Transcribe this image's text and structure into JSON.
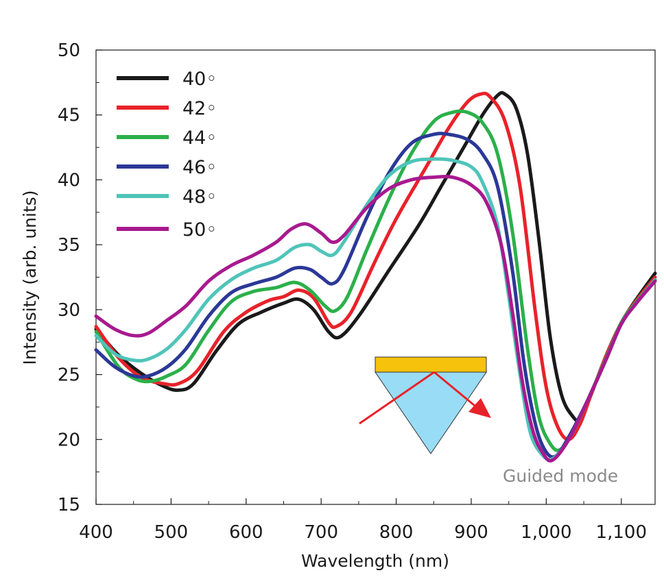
{
  "chart_data": {
    "type": "line",
    "xlabel": "Wavelength (nm)",
    "ylabel": "Intensity (arb. units)",
    "xlim": [
      400,
      1145
    ],
    "ylim": [
      15,
      50
    ],
    "x_ticks": [
      400,
      500,
      600,
      700,
      800,
      900,
      1000,
      1100
    ],
    "x_tick_labels": [
      "400",
      "500",
      "600",
      "700",
      "800",
      "900",
      "1,000",
      "1,100"
    ],
    "y_ticks": [
      15,
      20,
      25,
      30,
      35,
      40,
      45,
      50
    ],
    "y_tick_labels": [
      "15",
      "20",
      "25",
      "30",
      "35",
      "40",
      "45",
      "50"
    ],
    "grid": false,
    "legend_position": "top-left",
    "annotation": "Guided mode",
    "colors": {
      "prism": "#99dcf5",
      "metal_film": "#f7c20c",
      "ray": "#e8222a"
    },
    "series": [
      {
        "name": "40◦",
        "color": "#1a1a1a",
        "points": [
          [
            400,
            28.5
          ],
          [
            430,
            26.5
          ],
          [
            460,
            25.1
          ],
          [
            490,
            24.1
          ],
          [
            510,
            23.8
          ],
          [
            530,
            24.3
          ],
          [
            560,
            26.8
          ],
          [
            590,
            28.9
          ],
          [
            620,
            29.8
          ],
          [
            650,
            30.5
          ],
          [
            670,
            30.8
          ],
          [
            690,
            30.0
          ],
          [
            710,
            28.3
          ],
          [
            725,
            27.9
          ],
          [
            750,
            29.5
          ],
          [
            790,
            33.0
          ],
          [
            830,
            36.5
          ],
          [
            860,
            39.5
          ],
          [
            890,
            42.5
          ],
          [
            915,
            45.0
          ],
          [
            935,
            46.5
          ],
          [
            945,
            46.6
          ],
          [
            960,
            45.5
          ],
          [
            975,
            42.0
          ],
          [
            990,
            35.5
          ],
          [
            1005,
            28.0
          ],
          [
            1020,
            23.5
          ],
          [
            1035,
            21.8
          ],
          [
            1045,
            21.6
          ],
          [
            1060,
            23.5
          ],
          [
            1080,
            26.5
          ],
          [
            1100,
            29.0
          ],
          [
            1120,
            30.8
          ],
          [
            1145,
            32.8
          ]
        ]
      },
      {
        "name": "42◦",
        "color": "#e8222a",
        "points": [
          [
            400,
            28.7
          ],
          [
            430,
            26.3
          ],
          [
            460,
            24.8
          ],
          [
            490,
            24.3
          ],
          [
            510,
            24.3
          ],
          [
            535,
            25.3
          ],
          [
            570,
            28.3
          ],
          [
            600,
            29.8
          ],
          [
            630,
            30.7
          ],
          [
            650,
            31.0
          ],
          [
            670,
            31.5
          ],
          [
            690,
            30.9
          ],
          [
            710,
            29.0
          ],
          [
            720,
            28.7
          ],
          [
            740,
            29.8
          ],
          [
            770,
            33.5
          ],
          [
            800,
            37.0
          ],
          [
            840,
            41.0
          ],
          [
            870,
            44.0
          ],
          [
            895,
            46.0
          ],
          [
            912,
            46.6
          ],
          [
            925,
            46.4
          ],
          [
            945,
            44.5
          ],
          [
            965,
            39.5
          ],
          [
            985,
            30.0
          ],
          [
            1000,
            24.0
          ],
          [
            1015,
            21.0
          ],
          [
            1030,
            20.0
          ],
          [
            1045,
            21.2
          ],
          [
            1060,
            23.5
          ],
          [
            1080,
            26.5
          ],
          [
            1100,
            29.0
          ],
          [
            1120,
            30.7
          ],
          [
            1145,
            32.5
          ]
        ]
      },
      {
        "name": "44◦",
        "color": "#2bb04a",
        "points": [
          [
            400,
            28.3
          ],
          [
            430,
            25.6
          ],
          [
            455,
            24.6
          ],
          [
            475,
            24.5
          ],
          [
            495,
            24.9
          ],
          [
            520,
            25.8
          ],
          [
            550,
            28.4
          ],
          [
            580,
            30.6
          ],
          [
            610,
            31.4
          ],
          [
            640,
            31.7
          ],
          [
            665,
            32.1
          ],
          [
            685,
            31.5
          ],
          [
            705,
            30.3
          ],
          [
            718,
            29.9
          ],
          [
            735,
            31.0
          ],
          [
            760,
            34.5
          ],
          [
            790,
            38.5
          ],
          [
            820,
            42.0
          ],
          [
            850,
            44.5
          ],
          [
            875,
            45.2
          ],
          [
            895,
            45.2
          ],
          [
            915,
            44.4
          ],
          [
            935,
            42.0
          ],
          [
            955,
            36.0
          ],
          [
            975,
            27.0
          ],
          [
            990,
            21.8
          ],
          [
            1005,
            19.7
          ],
          [
            1018,
            19.2
          ],
          [
            1035,
            20.5
          ],
          [
            1055,
            23.0
          ],
          [
            1080,
            26.3
          ],
          [
            1100,
            29.0
          ],
          [
            1120,
            30.6
          ],
          [
            1145,
            32.3
          ]
        ]
      },
      {
        "name": "46◦",
        "color": "#2b3896",
        "points": [
          [
            400,
            26.9
          ],
          [
            425,
            25.6
          ],
          [
            450,
            24.9
          ],
          [
            470,
            24.9
          ],
          [
            495,
            25.6
          ],
          [
            520,
            27.0
          ],
          [
            550,
            29.5
          ],
          [
            580,
            31.3
          ],
          [
            610,
            32.0
          ],
          [
            640,
            32.5
          ],
          [
            665,
            33.2
          ],
          [
            685,
            33.1
          ],
          [
            700,
            32.5
          ],
          [
            715,
            32.0
          ],
          [
            730,
            33.0
          ],
          [
            760,
            37.0
          ],
          [
            790,
            40.5
          ],
          [
            820,
            42.8
          ],
          [
            850,
            43.5
          ],
          [
            870,
            43.5
          ],
          [
            895,
            43.1
          ],
          [
            915,
            42.0
          ],
          [
            935,
            39.5
          ],
          [
            955,
            33.0
          ],
          [
            970,
            26.0
          ],
          [
            985,
            21.3
          ],
          [
            998,
            19.2
          ],
          [
            1012,
            18.7
          ],
          [
            1030,
            20.2
          ],
          [
            1055,
            23.0
          ],
          [
            1080,
            26.2
          ],
          [
            1100,
            28.9
          ],
          [
            1120,
            30.5
          ],
          [
            1145,
            32.3
          ]
        ]
      },
      {
        "name": "48◦",
        "color": "#4fc4b8",
        "points": [
          [
            400,
            28.0
          ],
          [
            425,
            26.6
          ],
          [
            450,
            26.1
          ],
          [
            470,
            26.2
          ],
          [
            495,
            27.0
          ],
          [
            520,
            28.5
          ],
          [
            550,
            30.8
          ],
          [
            580,
            32.3
          ],
          [
            610,
            33.2
          ],
          [
            640,
            33.8
          ],
          [
            665,
            34.8
          ],
          [
            685,
            35.0
          ],
          [
            700,
            34.5
          ],
          [
            715,
            34.2
          ],
          [
            730,
            35.2
          ],
          [
            760,
            38.0
          ],
          [
            790,
            40.3
          ],
          [
            820,
            41.4
          ],
          [
            850,
            41.6
          ],
          [
            875,
            41.5
          ],
          [
            900,
            41.0
          ],
          [
            915,
            39.8
          ],
          [
            935,
            36.5
          ],
          [
            950,
            31.0
          ],
          [
            965,
            25.0
          ],
          [
            978,
            20.7
          ],
          [
            992,
            19.0
          ],
          [
            1008,
            18.5
          ],
          [
            1030,
            20.0
          ],
          [
            1055,
            23.0
          ],
          [
            1080,
            26.2
          ],
          [
            1100,
            28.9
          ],
          [
            1120,
            30.5
          ],
          [
            1145,
            32.3
          ]
        ]
      },
      {
        "name": "50◦",
        "color": "#a8198f",
        "points": [
          [
            400,
            29.5
          ],
          [
            425,
            28.5
          ],
          [
            450,
            28.0
          ],
          [
            470,
            28.2
          ],
          [
            495,
            29.2
          ],
          [
            520,
            30.3
          ],
          [
            550,
            32.2
          ],
          [
            580,
            33.4
          ],
          [
            610,
            34.2
          ],
          [
            640,
            35.2
          ],
          [
            660,
            36.2
          ],
          [
            680,
            36.6
          ],
          [
            700,
            35.9
          ],
          [
            715,
            35.2
          ],
          [
            730,
            35.7
          ],
          [
            760,
            37.8
          ],
          [
            790,
            39.3
          ],
          [
            820,
            40.0
          ],
          [
            850,
            40.2
          ],
          [
            875,
            40.2
          ],
          [
            900,
            39.6
          ],
          [
            920,
            38.3
          ],
          [
            940,
            35.0
          ],
          [
            955,
            29.8
          ],
          [
            968,
            24.5
          ],
          [
            982,
            20.7
          ],
          [
            995,
            19.0
          ],
          [
            1008,
            18.4
          ],
          [
            1030,
            20.0
          ],
          [
            1055,
            23.0
          ],
          [
            1080,
            26.2
          ],
          [
            1100,
            28.9
          ],
          [
            1120,
            30.5
          ],
          [
            1145,
            32.2
          ]
        ]
      }
    ]
  }
}
